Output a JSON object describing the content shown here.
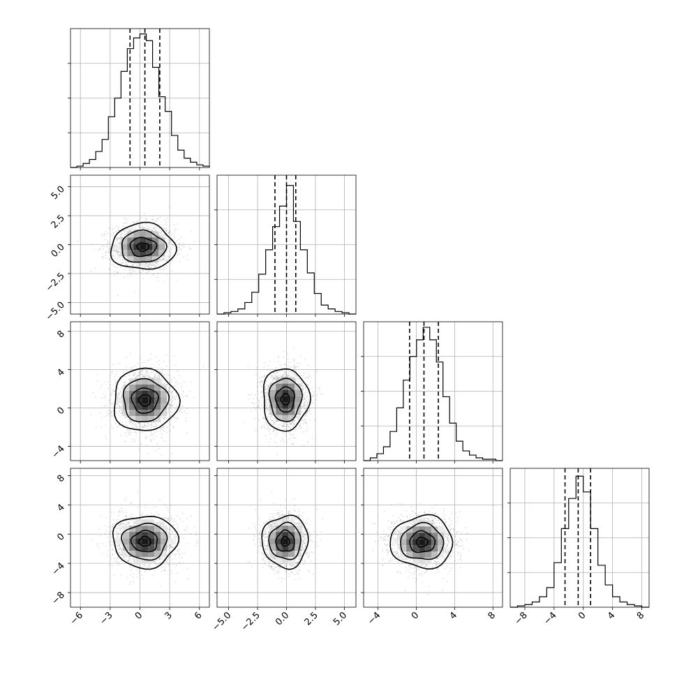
{
  "chart_data": {
    "type": "corner",
    "n_params": 4,
    "title": "",
    "grid": true,
    "colors": {
      "hist": "#000000",
      "points": "#8a8a8a",
      "density_dark": "#1a1a1a",
      "contour": "#000000"
    },
    "parameters": [
      {
        "label": "",
        "range": [
          -7.0,
          7.0
        ],
        "ticks": [
          -6,
          -3,
          0,
          3,
          6
        ],
        "tick_labels": [
          "−6",
          "−3",
          "0",
          "3",
          "6"
        ],
        "hist_ylim": [
          0,
          1.04
        ],
        "hist": [
          0,
          0.01,
          0.03,
          0.06,
          0.12,
          0.21,
          0.38,
          0.52,
          0.72,
          0.89,
          0.97,
          1.0,
          0.95,
          0.75,
          0.53,
          0.42,
          0.24,
          0.13,
          0.07,
          0.04,
          0.02,
          0.01
        ],
        "quantiles": [
          -1.0,
          0.5,
          2.0
        ],
        "center": 0.5,
        "sigma": 1.55
      },
      {
        "label": "",
        "range": [
          -6.0,
          6.0
        ],
        "ticks": [
          -5.0,
          -2.5,
          0.0,
          2.5,
          5.0
        ],
        "tick_labels": [
          "−5.0",
          "−2.5",
          "0.0",
          "2.5",
          "5.0"
        ],
        "hist_ylim": [
          0,
          1.08
        ],
        "hist": [
          0,
          0.01,
          0.02,
          0.04,
          0.09,
          0.17,
          0.31,
          0.5,
          0.68,
          0.84,
          1.0,
          0.72,
          0.5,
          0.32,
          0.16,
          0.07,
          0.04,
          0.02,
          0.01,
          0
        ],
        "quantiles": [
          -1.0,
          0.0,
          0.8
        ],
        "center": -0.1,
        "sigma": 0.95
      },
      {
        "label": "",
        "range": [
          -5.5,
          9.0
        ],
        "ticks": [
          -4,
          0,
          4,
          8
        ],
        "tick_labels": [
          "−4",
          "0",
          "4",
          "8"
        ],
        "hist_ylim": [
          0,
          1.0
        ],
        "hist": [
          0,
          0.02,
          0.05,
          0.1,
          0.21,
          0.38,
          0.58,
          0.75,
          0.87,
          0.96,
          0.87,
          0.71,
          0.46,
          0.27,
          0.14,
          0.07,
          0.04,
          0.02,
          0.01,
          0.01,
          0
        ],
        "quantiles": [
          -0.7,
          0.8,
          2.3
        ],
        "center": 0.8,
        "sigma": 1.55
      },
      {
        "label": "",
        "range": [
          -10.0,
          9.0
        ],
        "ticks": [
          -8,
          -4,
          0,
          4,
          8
        ],
        "tick_labels": [
          "−8",
          "−4",
          "0",
          "4",
          "8"
        ],
        "hist_ylim": [
          0,
          1.06
        ],
        "hist": [
          0,
          0.01,
          0.02,
          0.04,
          0.08,
          0.15,
          0.34,
          0.6,
          0.83,
          1.0,
          0.88,
          0.6,
          0.32,
          0.17,
          0.08,
          0.04,
          0.02,
          0.01,
          0
        ],
        "quantiles": [
          -2.5,
          -0.7,
          1.0
        ],
        "center": -0.8,
        "sigma": 1.7
      }
    ],
    "correlations": [
      {
        "row": 1,
        "col": 0,
        "peak": [
          0.3,
          -0.2
        ],
        "contour_scale": 1.0
      },
      {
        "row": 2,
        "col": 0,
        "peak": [
          0.5,
          0.8
        ],
        "contour_scale": 1.0
      },
      {
        "row": 2,
        "col": 1,
        "peak": [
          -0.1,
          0.9
        ],
        "contour_scale": 1.0
      },
      {
        "row": 3,
        "col": 0,
        "peak": [
          0.5,
          -1.0
        ],
        "contour_scale": 1.0
      },
      {
        "row": 3,
        "col": 1,
        "peak": [
          -0.1,
          -1.0
        ],
        "contour_scale": 1.0
      },
      {
        "row": 3,
        "col": 2,
        "peak": [
          0.6,
          -1.1
        ],
        "contour_scale": 1.0
      }
    ]
  }
}
